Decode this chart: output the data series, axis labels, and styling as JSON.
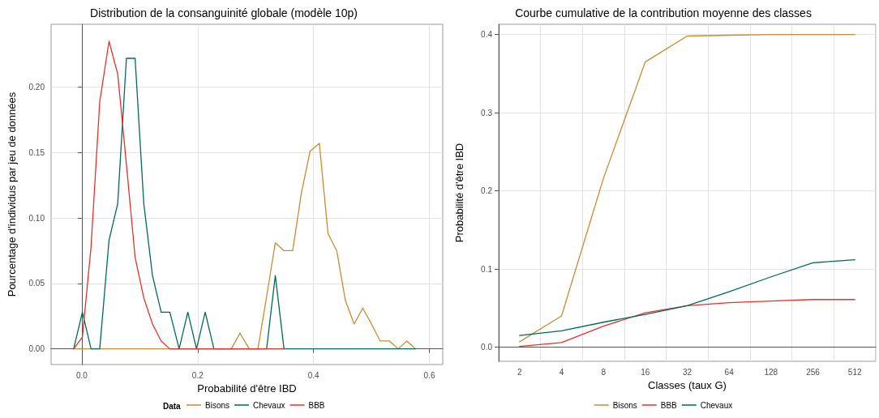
{
  "chart_data": [
    {
      "type": "line",
      "title": "Distribution de la consanguinité globale (modèle 10p)",
      "xlabel": "Probabilité d'être IBD",
      "ylabel": "Pourcentage d'individus par jeu de données",
      "legend_title": "Data",
      "legend": "bottom",
      "grid": true,
      "marker": "none",
      "line_style": "solid",
      "x": [
        -0.014,
        0.001,
        0.016,
        0.031,
        0.047,
        0.062,
        0.077,
        0.092,
        0.107,
        0.122,
        0.137,
        0.152,
        0.168,
        0.183,
        0.198,
        0.213,
        0.228,
        0.243,
        0.258,
        0.273,
        0.289,
        0.304,
        0.319,
        0.334,
        0.349,
        0.364,
        0.379,
        0.394,
        0.41,
        0.425,
        0.44,
        0.455,
        0.47,
        0.485,
        0.5,
        0.515,
        0.531,
        0.546,
        0.561,
        0.576
      ],
      "xlim": [
        -0.053,
        0.623
      ],
      "xticks": [
        {
          "value": 0,
          "label": "0.0"
        },
        0.2,
        0.4,
        0.6
      ],
      "ylim": [
        -0.012,
        0.248
      ],
      "yticks": [
        {
          "value": 0,
          "label": "0.00"
        },
        0.05,
        {
          "value": 0.1,
          "label": "0.10"
        },
        0.15,
        {
          "value": 0.2,
          "label": "0.20"
        }
      ],
      "series": [
        {
          "name": "Bisons",
          "color": "#cd8a32",
          "values": [
            0,
            0,
            0,
            0,
            0,
            0,
            0,
            0,
            0,
            0,
            0,
            0,
            0,
            0,
            0,
            0,
            0,
            0,
            0,
            0.012,
            0,
            0,
            0.04,
            0.081,
            0.075,
            0.075,
            0.119,
            0.151,
            0.157,
            0.088,
            0.075,
            0.037,
            0.019,
            0.031,
            0.019,
            0.006,
            0.006,
            0,
            0.006,
            0
          ]
        },
        {
          "name": "Chevaux",
          "color": "#006a5a",
          "values": [
            0,
            0.028,
            0,
            0,
            0.083,
            0.111,
            0.222,
            0.222,
            0.111,
            0.056,
            0.028,
            0.028,
            0,
            0.028,
            0,
            0.028,
            0,
            0,
            0,
            0,
            0,
            0,
            0,
            0.056,
            0,
            0,
            0,
            0,
            0,
            0,
            0,
            0,
            0,
            0,
            0,
            0,
            0,
            0,
            0,
            0
          ]
        },
        {
          "name": "BBB",
          "color": "#e8302a",
          "x": [
            -0.014,
            0.001,
            0.016,
            0.031,
            0.047,
            0.062,
            0.077,
            0.092,
            0.107,
            0.122,
            0.137,
            0.152,
            0.168,
            0.183,
            0.198,
            0.213,
            0.228,
            0.243,
            0.258,
            0.273,
            0.289,
            0.304,
            0.319,
            0.334,
            0.349
          ],
          "values": [
            0,
            0.009,
            0.078,
            0.189,
            0.235,
            0.21,
            0.141,
            0.07,
            0.039,
            0.019,
            0.006,
            0,
            0,
            0,
            0,
            0,
            0,
            0,
            0,
            0,
            0,
            0,
            0,
            0,
            0
          ]
        }
      ]
    },
    {
      "type": "line",
      "title": "Courbe cumulative de la contribution moyenne des classes",
      "xlabel": "Classes (taux G)",
      "ylabel": "Probabilité d'être IBD",
      "legend": "bottom",
      "grid": true,
      "marker": "none",
      "line_style": "solid",
      "categories": [
        "2",
        "4",
        "8",
        "16",
        "32",
        "64",
        "128",
        "256",
        "512"
      ],
      "ylim": [
        -0.018,
        0.413
      ],
      "yticks": [
        {
          "value": 0,
          "label": "0.0"
        },
        0.1,
        0.2,
        0.3,
        0.4
      ],
      "series": [
        {
          "name": "Bisons",
          "color": "#cd8a32",
          "values": [
            0.007,
            0.04,
            0.216,
            0.365,
            0.398,
            0.399,
            0.4,
            0.4,
            0.4
          ]
        },
        {
          "name": "BBB",
          "color": "#e8302a",
          "values": [
            0.001,
            0.006,
            0.027,
            0.044,
            0.053,
            0.057,
            0.059,
            0.061,
            0.061
          ]
        },
        {
          "name": "Chevaux",
          "color": "#006a5a",
          "values": [
            0.015,
            0.021,
            0.032,
            0.042,
            0.053,
            0.071,
            0.09,
            0.108,
            0.112
          ]
        }
      ]
    }
  ]
}
